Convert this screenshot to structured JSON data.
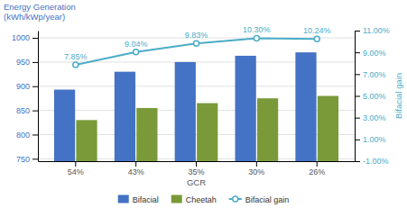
{
  "chart_data": {
    "type": "bar",
    "categories": [
      "54%",
      "43%",
      "35%",
      "30%",
      "26%"
    ],
    "xlabel": "GCR",
    "ylabel": [
      "Energy Generation",
      "(kWh/kWp/year)"
    ],
    "y2label": "Bifacial gain",
    "series": [
      {
        "name": "Bifacial",
        "color": "#4472C4",
        "values": [
          893,
          930,
          950,
          963,
          970
        ]
      },
      {
        "name": "Cheetah",
        "color": "#7A9A3A",
        "values": [
          830,
          855,
          865,
          875,
          880
        ]
      },
      {
        "name": "Bifacial gain",
        "type": "line",
        "axis": "y2",
        "color": "#4BACC6",
        "marker": "circle",
        "data_labels": true,
        "values": [
          7.85,
          9.04,
          9.83,
          10.3,
          10.24
        ],
        "value_labels": [
          "7.85%",
          "9.04%",
          "9.83%",
          "10.30%",
          "10.24%"
        ]
      }
    ],
    "ylim": [
      745,
      1015
    ],
    "yticks": [
      750,
      800,
      850,
      900,
      950,
      1000
    ],
    "y2lim": [
      -1.0,
      11.0
    ],
    "y2ticks": [
      {
        "value": -1.0,
        "label": "-1.00%"
      },
      {
        "value": 1.0,
        "label": "1.00%"
      },
      {
        "value": 3.0,
        "label": "3.00%"
      },
      {
        "value": 5.0,
        "label": "5.00%"
      },
      {
        "value": 7.0,
        "label": "7.00%"
      },
      {
        "value": 9.0,
        "label": "9.00%"
      },
      {
        "value": 11.0,
        "label": "11.00%"
      }
    ],
    "grid": true,
    "legend": "bottom"
  }
}
